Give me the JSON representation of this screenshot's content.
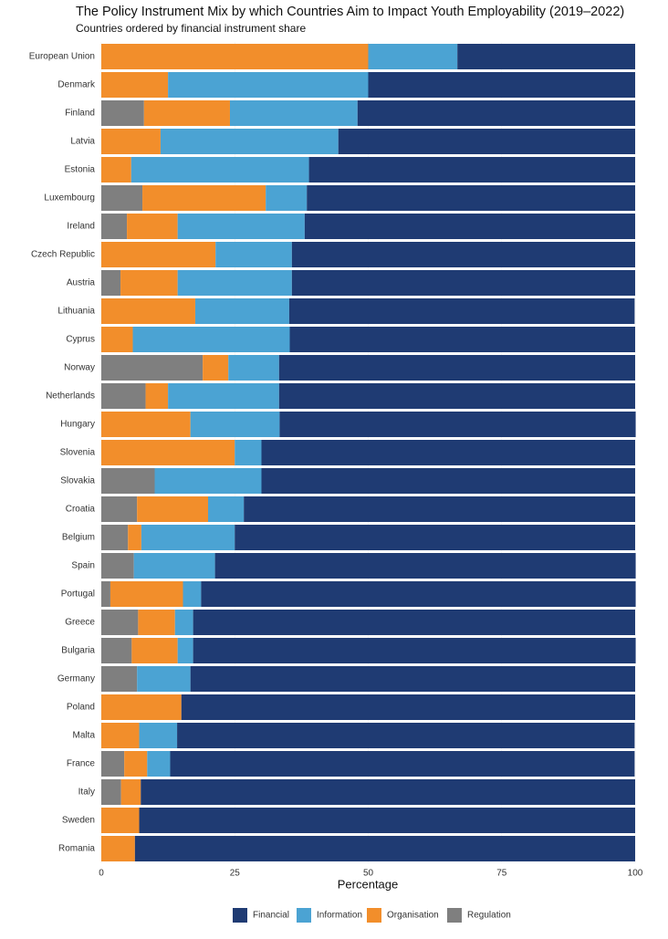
{
  "chart_data": {
    "type": "stacked-bar-horizontal",
    "title": "The Policy Instrument Mix by which Countries Aim to Impact Youth Employability (2019–2022)",
    "subtitle": "Countries ordered by financial instrument share",
    "x_label": "Percentage",
    "categories": [
      "European Union",
      "Denmark",
      "Finland",
      "Latvia",
      "Estonia",
      "Luxembourg",
      "Ireland",
      "Czech Republic",
      "Austria",
      "Lithuania",
      "Cyprus",
      "Norway",
      "Netherlands",
      "Hungary",
      "Slovenia",
      "Slovakia",
      "Croatia",
      "Belgium",
      "Spain",
      "Portugal",
      "Greece",
      "Bulgaria",
      "Germany",
      "Poland",
      "Malta",
      "France",
      "Italy",
      "Sweden",
      "Romania"
    ],
    "series": [
      {
        "name": "Financial",
        "color": "#1f3b73",
        "values": [
          33.3,
          50,
          52,
          55.6,
          61.1,
          61.5,
          61.9,
          64.3,
          64.3,
          64.7,
          64.7,
          66.7,
          66.7,
          66.7,
          70,
          70,
          73.3,
          75,
          78.8,
          81.4,
          82.8,
          82.9,
          83.3,
          85,
          85.7,
          87,
          92.6,
          92.9,
          93.7
        ]
      },
      {
        "name": "Information",
        "color": "#4ba3d3",
        "values": [
          16.7,
          37.5,
          23.9,
          33.3,
          33.3,
          7.7,
          23.8,
          14.3,
          21.4,
          17.6,
          29.4,
          9.5,
          20.8,
          16.7,
          5,
          20,
          6.7,
          17.5,
          15.2,
          3.4,
          3.4,
          2.9,
          10,
          0,
          7.1,
          4.3,
          0,
          0,
          0
        ]
      },
      {
        "name": "Organisation",
        "color": "#f28e2b",
        "values": [
          50,
          12.5,
          16.1,
          11.1,
          5.6,
          23.1,
          9.5,
          21.4,
          10.7,
          17.6,
          5.9,
          4.8,
          4.2,
          16.7,
          25,
          0,
          13.3,
          2.5,
          0,
          13.6,
          6.9,
          8.6,
          0,
          15,
          7.1,
          4.3,
          3.7,
          7.1,
          6.3
        ]
      },
      {
        "name": "Regulation",
        "color": "#7f7f7f",
        "values": [
          0,
          0,
          8,
          0,
          0,
          7.7,
          4.8,
          0,
          3.6,
          0,
          0,
          19,
          8.3,
          0,
          0,
          10,
          6.7,
          5,
          6.1,
          1.7,
          6.9,
          5.7,
          6.7,
          0,
          0,
          4.3,
          3.7,
          0,
          0
        ]
      }
    ],
    "xlim": [
      0,
      100
    ],
    "xticks": [
      0,
      25,
      50,
      75,
      100
    ],
    "legend": "bottom"
  }
}
